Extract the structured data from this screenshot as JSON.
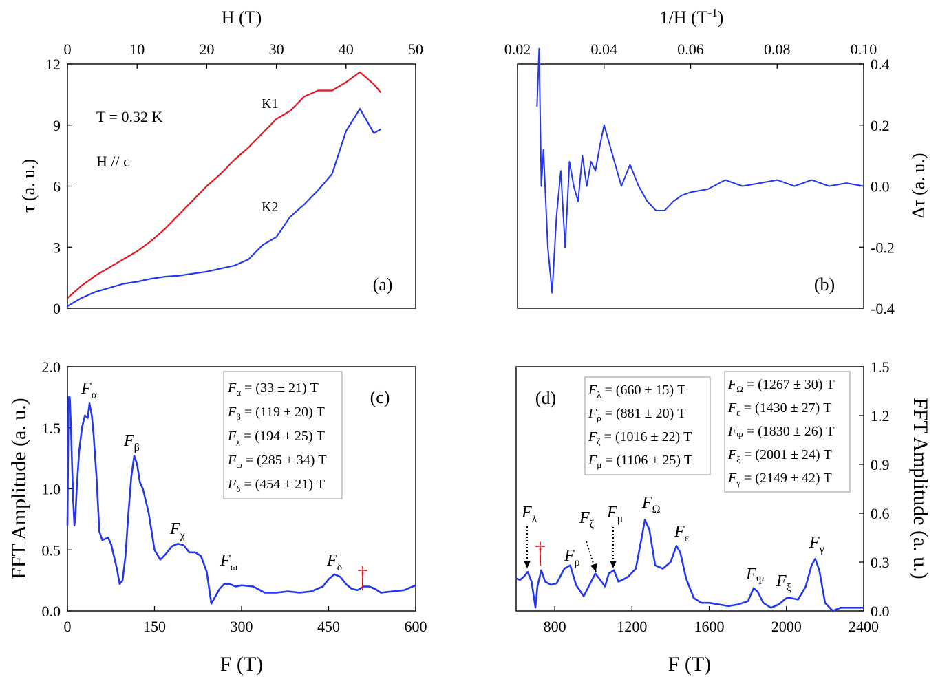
{
  "colors": {
    "red": "#e8141c",
    "blue": "#2437f0",
    "black": "#000000",
    "box": "#9a9a9a"
  },
  "chart_data": [
    {
      "panel": "(a)",
      "type": "line",
      "top_axis": {
        "label": "H (T)",
        "range": [
          0,
          50
        ],
        "ticks": [
          "0",
          "10",
          "20",
          "30",
          "40",
          "50"
        ]
      },
      "y_axis": {
        "label": "τ (a. u.)",
        "range": [
          0,
          12
        ],
        "ticks": [
          "0",
          "3",
          "6",
          "9",
          "12"
        ]
      },
      "annotations": [
        "T = 0.32 K",
        "H // c",
        "K1",
        "K2",
        "(a)"
      ],
      "series": [
        {
          "name": "K1",
          "color": "#e8141c",
          "x": [
            0,
            2,
            4,
            6,
            8,
            10,
            12,
            14,
            16,
            18,
            20,
            22,
            24,
            26,
            28,
            30,
            32,
            34,
            36,
            38,
            40,
            42,
            44,
            45
          ],
          "y": [
            0.5,
            1.1,
            1.6,
            2.0,
            2.4,
            2.8,
            3.3,
            3.9,
            4.6,
            5.3,
            6.0,
            6.6,
            7.3,
            7.9,
            8.6,
            9.3,
            9.7,
            10.4,
            10.7,
            10.7,
            11.1,
            11.6,
            11.0,
            10.6
          ]
        },
        {
          "name": "K2",
          "color": "#2437f0",
          "x": [
            0,
            2,
            4,
            6,
            8,
            10,
            12,
            14,
            16,
            18,
            20,
            22,
            24,
            26,
            28,
            30,
            32,
            34,
            36,
            38,
            40,
            42,
            44,
            45
          ],
          "y": [
            0.1,
            0.5,
            0.8,
            1.0,
            1.2,
            1.3,
            1.45,
            1.55,
            1.6,
            1.7,
            1.8,
            1.95,
            2.1,
            2.4,
            3.1,
            3.5,
            4.5,
            5.1,
            5.8,
            6.6,
            8.7,
            9.8,
            8.6,
            8.8
          ]
        }
      ]
    },
    {
      "panel": "(b)",
      "type": "line",
      "top_axis": {
        "label": "1/H (T",
        "label_sup": "-1",
        "label_end": ")",
        "range": [
          0.02,
          0.1
        ],
        "ticks": [
          "0.02",
          "0.04",
          "0.06",
          "0.08",
          "0.10"
        ]
      },
      "y_axis": {
        "label": "Δτ (a. u.)",
        "range": [
          -0.4,
          0.4
        ],
        "ticks": [
          "-0.4",
          "-0.2",
          "0.0",
          "0.2",
          "0.4"
        ]
      },
      "annotations": [
        "(b)"
      ],
      "series": [
        {
          "color": "#2437f0",
          "x": [
            0.0245,
            0.025,
            0.0255,
            0.026,
            0.027,
            0.028,
            0.029,
            0.03,
            0.031,
            0.032,
            0.033,
            0.034,
            0.035,
            0.036,
            0.037,
            0.038,
            0.039,
            0.04,
            0.042,
            0.044,
            0.046,
            0.048,
            0.05,
            0.052,
            0.054,
            0.056,
            0.058,
            0.06,
            0.064,
            0.068,
            0.072,
            0.076,
            0.08,
            0.084,
            0.088,
            0.092,
            0.096,
            0.1
          ],
          "y": [
            0.26,
            0.45,
            0.0,
            0.12,
            -0.2,
            -0.35,
            -0.1,
            0.05,
            -0.2,
            0.08,
            0.0,
            -0.05,
            0.1,
            0.0,
            0.08,
            0.05,
            0.13,
            0.2,
            0.1,
            0.0,
            0.07,
            0.0,
            -0.05,
            -0.08,
            -0.08,
            -0.05,
            -0.03,
            -0.02,
            -0.01,
            0.02,
            0.0,
            0.01,
            0.02,
            0.0,
            0.02,
            0.0,
            0.01,
            0.0
          ]
        }
      ]
    },
    {
      "panel": "(c)",
      "type": "line",
      "x_axis": {
        "label": "F (T)",
        "range": [
          0,
          600
        ],
        "ticks": [
          "0",
          "150",
          "300",
          "450",
          "600"
        ]
      },
      "y_axis": {
        "label": "FFT Amplitude (a. u.)",
        "range": [
          0,
          2.0
        ],
        "ticks": [
          "0.0",
          "0.5",
          "1.0",
          "1.5",
          "2.0"
        ]
      },
      "peak_labels": [
        {
          "base": "F",
          "sub": "α"
        },
        {
          "base": "F",
          "sub": "β"
        },
        {
          "base": "F",
          "sub": "χ"
        },
        {
          "base": "F",
          "sub": "ω"
        },
        {
          "base": "F",
          "sub": "δ"
        }
      ],
      "marker": "†",
      "legend": [
        {
          "sub": "α",
          "text": " = (33 ± 21) T"
        },
        {
          "sub": "β",
          "text": " = (119 ± 20) T"
        },
        {
          "sub": "χ",
          "text": " = (194 ± 25) T"
        },
        {
          "sub": "ω",
          "text": " = (285 ± 34) T"
        },
        {
          "sub": "δ",
          "text": " = (454 ± 21) T"
        }
      ],
      "annotations": [
        "(c)"
      ],
      "series": [
        {
          "color": "#2437f0",
          "x": [
            0,
            2,
            4,
            6,
            8,
            10,
            12,
            14,
            16,
            20,
            25,
            30,
            35,
            38,
            42,
            45,
            50,
            55,
            60,
            70,
            75,
            80,
            85,
            90,
            95,
            100,
            105,
            110,
            115,
            120,
            125,
            130,
            140,
            150,
            160,
            170,
            180,
            190,
            200,
            210,
            220,
            230,
            240,
            248,
            255,
            262,
            270,
            280,
            290,
            300,
            320,
            340,
            360,
            380,
            400,
            420,
            440,
            450,
            460,
            470,
            480,
            490,
            500,
            510,
            520,
            530,
            540,
            560,
            580,
            600
          ],
          "y": [
            0.7,
            1.75,
            1.75,
            1.5,
            1.2,
            0.9,
            0.7,
            0.8,
            1.0,
            1.3,
            1.5,
            1.6,
            1.58,
            1.7,
            1.6,
            1.45,
            1.1,
            0.65,
            0.58,
            0.6,
            0.55,
            0.45,
            0.35,
            0.22,
            0.25,
            0.45,
            0.8,
            1.1,
            1.27,
            1.2,
            1.05,
            1.0,
            0.8,
            0.5,
            0.42,
            0.47,
            0.53,
            0.55,
            0.54,
            0.48,
            0.48,
            0.45,
            0.32,
            0.06,
            0.12,
            0.18,
            0.22,
            0.22,
            0.2,
            0.21,
            0.2,
            0.15,
            0.15,
            0.16,
            0.15,
            0.16,
            0.2,
            0.26,
            0.3,
            0.28,
            0.22,
            0.18,
            0.17,
            0.2,
            0.2,
            0.18,
            0.15,
            0.16,
            0.17,
            0.21
          ]
        }
      ]
    },
    {
      "panel": "(d)",
      "type": "line",
      "x_axis": {
        "label": "F (T)",
        "range": [
          600,
          2400
        ],
        "ticks": [
          "800",
          "1200",
          "1600",
          "2000",
          "2400"
        ]
      },
      "y_axis_right": {
        "label": "FFT Amplitude (a. u.)",
        "range": [
          0,
          1.5
        ],
        "ticks": [
          "0.0",
          "0.3",
          "0.6",
          "0.9",
          "1.2",
          "1.5"
        ]
      },
      "peak_labels": [
        {
          "base": "F",
          "sub": "λ"
        },
        {
          "base": "F",
          "sub": "ρ"
        },
        {
          "base": "F",
          "sub": "ζ"
        },
        {
          "base": "F",
          "sub": "μ"
        },
        {
          "base": "F",
          "sub": "Ω"
        },
        {
          "base": "F",
          "sub": "ε"
        },
        {
          "base": "F",
          "sub": "Ψ"
        },
        {
          "base": "F",
          "sub": "ξ"
        },
        {
          "base": "F",
          "sub": "γ"
        }
      ],
      "marker": "†",
      "legend_left": [
        {
          "sub": "λ",
          "text": " = (660 ± 15) T"
        },
        {
          "sub": "ρ",
          "text": " = (881 ± 20) T"
        },
        {
          "sub": "ζ",
          "text": " = (1016 ± 22) T"
        },
        {
          "sub": "μ",
          "text": " = (1106 ± 25) T"
        }
      ],
      "legend_right": [
        {
          "sub": "Ω",
          "text": " = (1267 ± 30) T"
        },
        {
          "sub": "ε",
          "text": " = (1430 ± 27) T"
        },
        {
          "sub": "Ψ",
          "text": " = (1830 ± 26) T"
        },
        {
          "sub": "ξ",
          "text": " = (2001 ± 24) T"
        },
        {
          "sub": "γ",
          "text": " = (2149 ± 42) T"
        }
      ],
      "annotations": [
        "(d)"
      ],
      "series": [
        {
          "color": "#2437f0",
          "x": [
            600,
            620,
            640,
            660,
            680,
            700,
            710,
            730,
            750,
            780,
            810,
            850,
            880,
            910,
            950,
            980,
            1010,
            1030,
            1060,
            1080,
            1106,
            1130,
            1150,
            1180,
            1220,
            1250,
            1267,
            1290,
            1320,
            1360,
            1400,
            1430,
            1450,
            1480,
            1520,
            1560,
            1600,
            1650,
            1700,
            1750,
            1800,
            1830,
            1850,
            1880,
            1920,
            1960,
            2000,
            2020,
            2060,
            2100,
            2130,
            2149,
            2170,
            2200,
            2240,
            2280,
            2320,
            2360,
            2400
          ],
          "y": [
            0.2,
            0.19,
            0.21,
            0.24,
            0.18,
            0.02,
            0.15,
            0.25,
            0.18,
            0.16,
            0.17,
            0.26,
            0.28,
            0.16,
            0.09,
            0.16,
            0.23,
            0.2,
            0.15,
            0.23,
            0.25,
            0.18,
            0.19,
            0.21,
            0.26,
            0.45,
            0.56,
            0.5,
            0.28,
            0.26,
            0.3,
            0.4,
            0.36,
            0.2,
            0.08,
            0.05,
            0.05,
            0.04,
            0.03,
            0.04,
            0.06,
            0.14,
            0.12,
            0.05,
            0.02,
            0.04,
            0.08,
            0.08,
            0.07,
            0.15,
            0.28,
            0.32,
            0.25,
            0.05,
            0.0,
            0.02,
            0.02,
            0.02,
            0.02
          ]
        }
      ]
    }
  ]
}
